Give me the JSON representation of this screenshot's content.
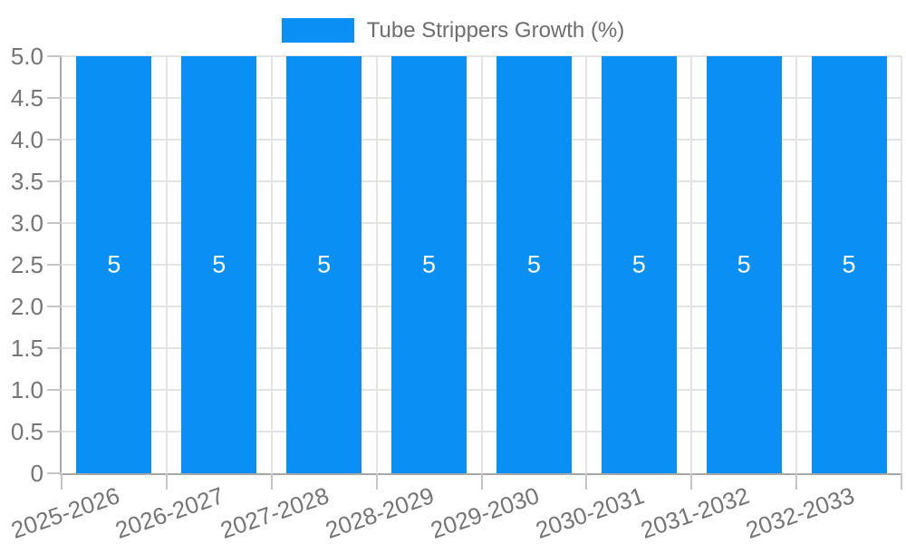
{
  "chart_data": {
    "type": "bar",
    "legend": {
      "label": "Tube Strippers Growth (%)",
      "position": "top-center"
    },
    "categories": [
      "2025-2026",
      "2026-2027",
      "2027-2028",
      "2028-2029",
      "2029-2030",
      "2030-2031",
      "2031-2032",
      "2032-2033"
    ],
    "series": [
      {
        "name": "Tube Strippers Growth (%)",
        "values": [
          5,
          5,
          5,
          5,
          5,
          5,
          5,
          5
        ]
      }
    ],
    "bar_value_labels": [
      "5",
      "5",
      "5",
      "5",
      "5",
      "5",
      "5",
      "5"
    ],
    "ylim": [
      0,
      5
    ],
    "ytick_labels": [
      "0",
      "0.5",
      "1.0",
      "1.5",
      "2.0",
      "2.5",
      "3.0",
      "3.5",
      "4.0",
      "4.5",
      "5.0"
    ],
    "grid": true,
    "xtick_label_rotation_deg": -19,
    "colors": {
      "bar": "#0a8ff5",
      "grid_line": "#e4e4e4",
      "axis_line": "#a8a8a8",
      "tick_mark": "#c6c6c6",
      "tick_text": "#757575",
      "legend_text": "#6e6e6e",
      "bar_label_text": "#ffffff",
      "background": "#ffffff"
    }
  }
}
